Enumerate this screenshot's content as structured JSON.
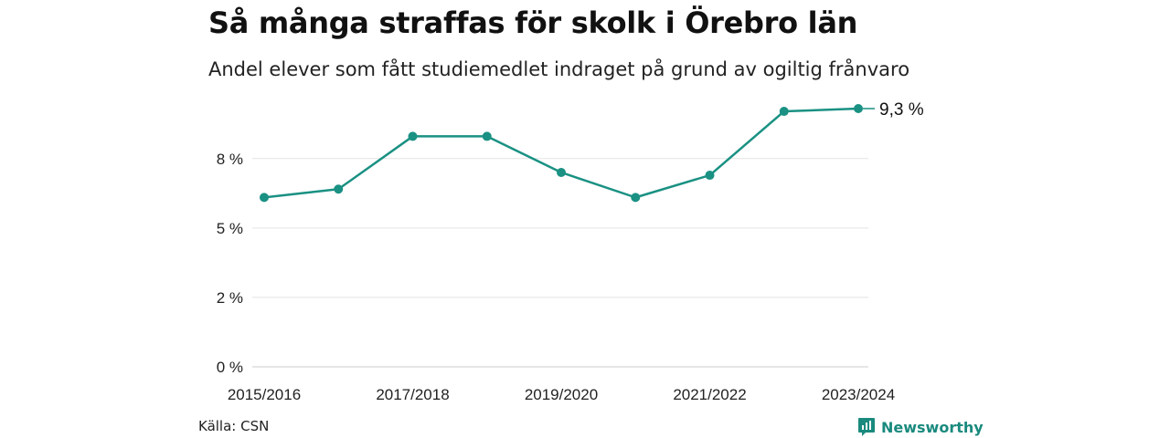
{
  "header": {
    "title": "Så många straffas för skolk i Örebro län",
    "subtitle": "Andel elever som fått studiemedlet indraget på grund av ogiltig frånvaro"
  },
  "footer": {
    "source": "Källa: CSN",
    "brand": "Newsworthy",
    "brand_icon": "newsworthy-logo-icon",
    "brand_color": "#1a8a7e"
  },
  "chart_data": {
    "type": "line",
    "x": [
      "2015/2016",
      "2016/2017",
      "2017/2018",
      "2018/2019",
      "2019/2020",
      "2020/2021",
      "2021/2022",
      "2022/2023",
      "2023/2024"
    ],
    "x_tick_labels": [
      "2015/2016",
      "2017/2018",
      "2019/2020",
      "2021/2022",
      "2023/2024"
    ],
    "y_tick_values": [
      0,
      2.5,
      5,
      7.5
    ],
    "y_tick_labels": [
      "0 %",
      "2 %",
      "5 %",
      "8 %"
    ],
    "ylim": [
      0,
      9.3
    ],
    "grid": true,
    "series": [
      {
        "values": [
          6.1,
          6.4,
          8.3,
          8.3,
          7.0,
          6.1,
          6.9,
          9.2,
          9.3
        ],
        "color": "#1a9183"
      }
    ],
    "end_label": "9,3 %"
  }
}
